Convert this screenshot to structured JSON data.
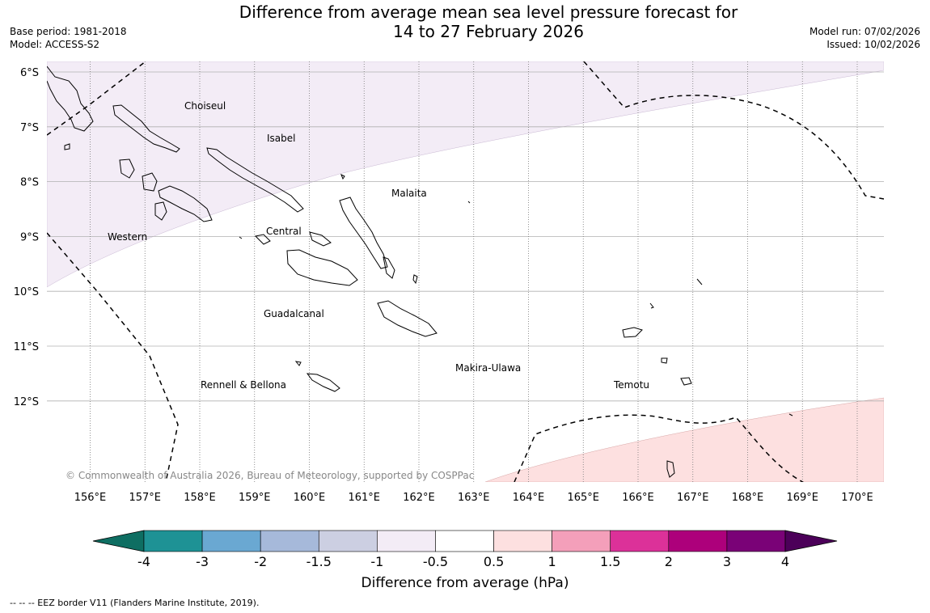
{
  "title": {
    "line1": "Difference from average mean sea level pressure forecast for",
    "line2": "14 to 27 February 2026"
  },
  "meta": {
    "base_period": "Base period: 1981-2018",
    "model": "Model: ACCESS-S2",
    "model_run": "Model run: 07/02/2026",
    "issued": "Issued: 10/02/2026"
  },
  "map": {
    "lat_ticks": [
      "6°S",
      "7°S",
      "8°S",
      "9°S",
      "10°S",
      "11°S",
      "12°S"
    ],
    "lon_ticks": [
      "156°E",
      "157°E",
      "158°E",
      "159°E",
      "160°E",
      "161°E",
      "162°E",
      "163°E",
      "164°E",
      "165°E",
      "166°E",
      "167°E",
      "168°E",
      "169°E",
      "170°E"
    ],
    "regions": [
      "Choiseul",
      "Isabel",
      "Malaita",
      "Western",
      "Central",
      "Guadalcanal",
      "Makira-Ulawa",
      "Rennell & Bellona",
      "Temotu"
    ],
    "copyright": "© Commonwealth of Australia 2026, Bureau of Meteorology, supported by COSPPac",
    "anomaly_fill_colors": {
      "negative_weak": "#f3ecf6",
      "positive_weak": "#fde0e0"
    }
  },
  "colorbar": {
    "title": "Difference from average (hPa)",
    "ticks": [
      "-4",
      "-3",
      "-2",
      "-1.5",
      "-1",
      "-0.5",
      "0.5",
      "1",
      "1.5",
      "2",
      "3",
      "4"
    ],
    "colors": [
      "#0e6e62",
      "#1e9295",
      "#6aa8d2",
      "#a6b9da",
      "#cccfe2",
      "#f3ecf6",
      "#ffffff",
      "#fde0e0",
      "#f49fba",
      "#dc3199",
      "#ad007b",
      "#7a0277",
      "#4c0059"
    ]
  },
  "eez_note": "-- -- -- EEZ border V11 (Flanders Marine Institute, 2019)."
}
